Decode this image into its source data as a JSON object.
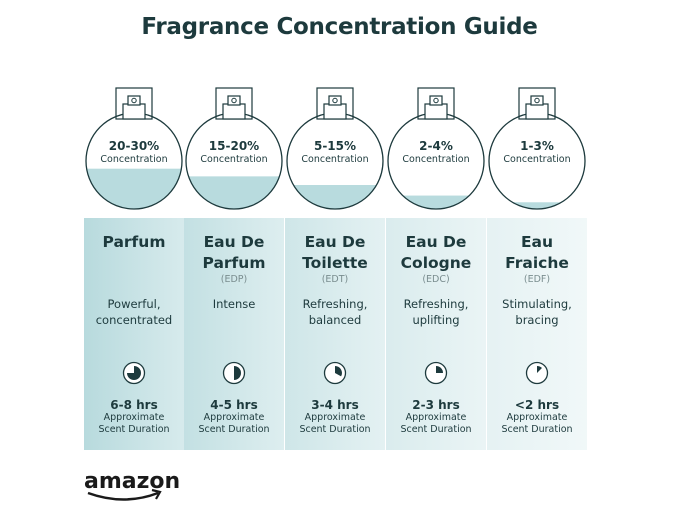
{
  "title": "Fragrance Concentration Guide",
  "concentration_label": "Concentration",
  "duration_label_1": "Approximate",
  "duration_label_2": "Scent Duration",
  "logo_text": "amazon",
  "colors": {
    "text": "#1d3a3d",
    "liquid": "#b8dbde",
    "panel_left": "#bcdcdf",
    "panel_right": "#eef6f7"
  },
  "types": [
    {
      "name1": "Parfum",
      "name2": "",
      "abbr": "",
      "desc1": "Powerful,",
      "desc2": "concentrated",
      "concentration": "20-30%",
      "liquid_level": 0.42,
      "hours": "6-8 hrs",
      "clock_fill": 0.75
    },
    {
      "name1": "Eau De",
      "name2": "Parfum",
      "abbr": "(EDP)",
      "desc1": "Intense",
      "desc2": "",
      "concentration": "15-20%",
      "liquid_level": 0.34,
      "hours": "4-5 hrs",
      "clock_fill": 0.5
    },
    {
      "name1": "Eau De",
      "name2": "Toilette",
      "abbr": "(EDT)",
      "desc1": "Refreshing,",
      "desc2": "balanced",
      "concentration": "5-15%",
      "liquid_level": 0.25,
      "hours": "3-4 hrs",
      "clock_fill": 0.33
    },
    {
      "name1": "Eau De",
      "name2": "Cologne",
      "abbr": "(EDC)",
      "desc1": "Refreshing,",
      "desc2": "uplifting",
      "concentration": "2-4%",
      "liquid_level": 0.14,
      "hours": "2-3 hrs",
      "clock_fill": 0.25
    },
    {
      "name1": "Eau",
      "name2": "Fraiche",
      "abbr": "(EDF)",
      "desc1": "Stimulating,",
      "desc2": "bracing",
      "concentration": "1-3%",
      "liquid_level": 0.07,
      "hours": "<2 hrs",
      "clock_fill": 0.125
    }
  ]
}
